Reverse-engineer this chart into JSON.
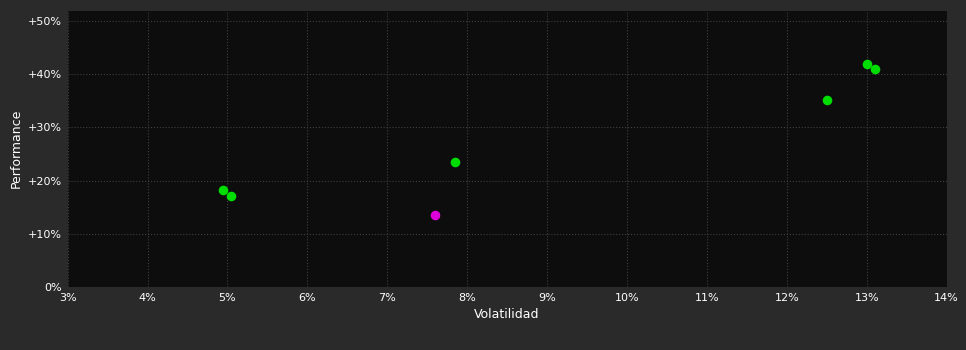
{
  "bg_color": "#2a2a2a",
  "plot_bg_color": "#0d0d0d",
  "grid_color": "#404040",
  "text_color": "#ffffff",
  "xlabel": "Volatilidad",
  "ylabel": "Performance",
  "xlim": [
    0.03,
    0.14
  ],
  "ylim": [
    0.0,
    0.52
  ],
  "xticks": [
    0.03,
    0.04,
    0.05,
    0.06,
    0.07,
    0.08,
    0.09,
    0.1,
    0.11,
    0.12,
    0.13,
    0.14
  ],
  "yticks": [
    0.0,
    0.1,
    0.2,
    0.3,
    0.4,
    0.5
  ],
  "green_points": [
    [
      0.0495,
      0.182
    ],
    [
      0.0505,
      0.171
    ],
    [
      0.0785,
      0.236
    ],
    [
      0.125,
      0.352
    ],
    [
      0.13,
      0.42
    ],
    [
      0.131,
      0.41
    ]
  ],
  "magenta_points": [
    [
      0.076,
      0.135
    ]
  ],
  "green_color": "#00dd00",
  "magenta_color": "#dd00dd",
  "marker_size": 35,
  "marker_style": "o"
}
